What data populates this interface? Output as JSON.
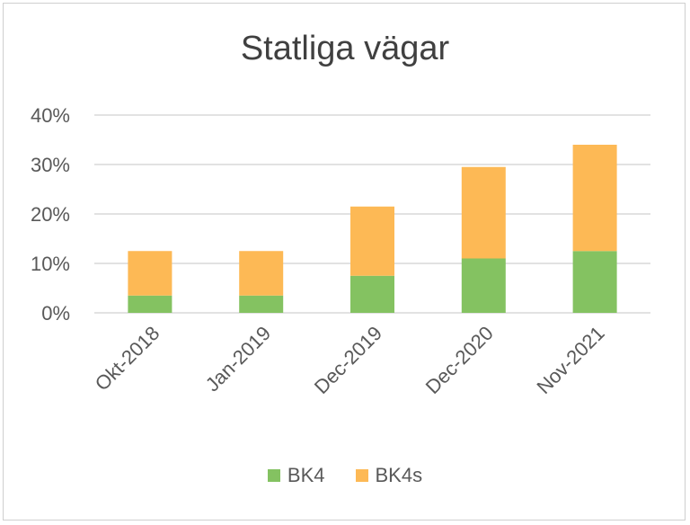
{
  "chart_data": {
    "type": "bar",
    "stacked": true,
    "title": "Statliga vägar",
    "categories": [
      "Okt-2018",
      "Jan-2019",
      "Dec-2019",
      "Dec-2020",
      "Nov-2021"
    ],
    "series": [
      {
        "name": "BK4",
        "color": "#84c261",
        "values": [
          3.5,
          3.5,
          7.5,
          11,
          12.5
        ]
      },
      {
        "name": "BK4s",
        "color": "#fdb955",
        "values": [
          9,
          9,
          14,
          18.5,
          21.5
        ]
      }
    ],
    "ylim": [
      0,
      40
    ],
    "yticks": [
      "0%",
      "10%",
      "20%",
      "30%",
      "40%"
    ],
    "ytick_values": [
      0,
      10,
      20,
      30,
      40
    ],
    "grid": true,
    "legend_position": "bottom"
  }
}
